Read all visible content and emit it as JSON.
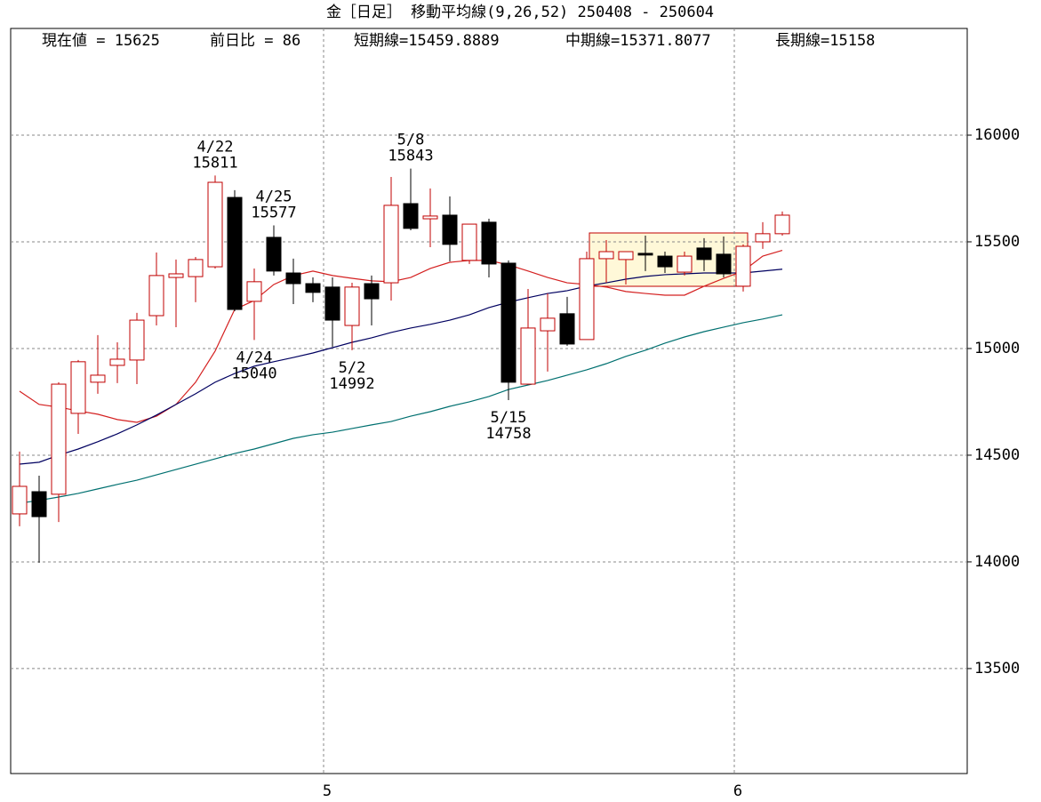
{
  "chart_data": {
    "type": "candlestick",
    "title": "金［日足］ 移動平均線(9,26,52)  250408 - 250604",
    "info": [
      "現在値 = 15625",
      "前日比 = 86",
      "短期線=15459.8889",
      "中期線=15371.8077",
      "長期線=15158"
    ],
    "categories": [
      null,
      null,
      null,
      null,
      null,
      null,
      null,
      null,
      null,
      null,
      null,
      null,
      null,
      null,
      null,
      null,
      "5",
      null,
      null,
      null,
      null,
      null,
      null,
      null,
      null,
      null,
      null,
      null,
      null,
      null,
      null,
      null,
      null,
      null,
      null,
      null,
      null,
      "6",
      null,
      null
    ],
    "open": [
      14225,
      14329,
      14317,
      14696,
      14842,
      14921,
      14946,
      15154,
      15333,
      15337,
      15383,
      15708,
      15221,
      15521,
      15354,
      15304,
      15288,
      15108,
      15304,
      15308,
      15679,
      15608,
      15625,
      15413,
      15592,
      15400,
      14833,
      15083,
      15163,
      15042,
      15421,
      15417,
      15446,
      15433,
      15358,
      15471,
      15442,
      15292,
      15500,
      15538
    ],
    "high": [
      14517,
      14404,
      14842,
      14946,
      15063,
      15029,
      15167,
      15450,
      15417,
      15429,
      15811,
      15742,
      15375,
      15577,
      15421,
      15333,
      15333,
      15308,
      15342,
      15804,
      15843,
      15750,
      15713,
      15583,
      15608,
      15413,
      15279,
      15258,
      15242,
      15454,
      15508,
      15454,
      15529,
      15454,
      15454,
      15517,
      15525,
      15488,
      15592,
      15642
    ],
    "low": [
      14167,
      13996,
      14187,
      14600,
      14788,
      14838,
      14833,
      15108,
      15100,
      15217,
      15375,
      15175,
      15040,
      15342,
      15208,
      15217,
      15008,
      14992,
      15108,
      15225,
      15554,
      15475,
      15408,
      15396,
      15333,
      14758,
      14833,
      14892,
      15013,
      15042,
      15308,
      15300,
      15363,
      15354,
      15342,
      15363,
      15333,
      15267,
      15467,
      15529
    ],
    "close": [
      14354,
      14212,
      14833,
      14938,
      14875,
      14950,
      15133,
      15342,
      15350,
      15417,
      15779,
      15183,
      15313,
      15363,
      15304,
      15263,
      15133,
      15288,
      15233,
      15671,
      15563,
      15621,
      15488,
      15583,
      15396,
      14842,
      15096,
      15142,
      15021,
      15421,
      15454,
      15454,
      15438,
      15383,
      15433,
      15417,
      15350,
      15479,
      15538,
      15625
    ],
    "up_color": "#c00000",
    "down_color": "#000000",
    "series": [
      {
        "color": "#d42020",
        "values": [
          14800,
          14738,
          14725,
          14708,
          14692,
          14667,
          14654,
          14683,
          14738,
          14842,
          14988,
          15183,
          15225,
          15300,
          15342,
          15363,
          15342,
          15329,
          15317,
          15313,
          15333,
          15375,
          15404,
          15413,
          15413,
          15392,
          15363,
          15333,
          15308,
          15300,
          15288,
          15267,
          15258,
          15250,
          15250,
          15292,
          15329,
          15363,
          15433,
          15459.8889
        ]
      },
      {
        "color": "#000060",
        "values": [
          14458,
          14467,
          14500,
          14529,
          14563,
          14600,
          14642,
          14688,
          14738,
          14788,
          14842,
          14883,
          14917,
          14938,
          14958,
          14979,
          15004,
          15029,
          15050,
          15075,
          15096,
          15113,
          15133,
          15158,
          15192,
          15217,
          15238,
          15258,
          15271,
          15292,
          15308,
          15325,
          15338,
          15346,
          15350,
          15354,
          15354,
          15354,
          15363,
          15371.8077
        ]
      },
      {
        "color": "#007070",
        "values": [
          14275,
          14288,
          14304,
          14321,
          14342,
          14363,
          14383,
          14408,
          14433,
          14458,
          14483,
          14508,
          14529,
          14554,
          14579,
          14596,
          14608,
          14625,
          14642,
          14658,
          14683,
          14704,
          14729,
          14750,
          14775,
          14808,
          14829,
          14850,
          14875,
          14900,
          14929,
          14963,
          14992,
          15025,
          15054,
          15079,
          15100,
          15121,
          15138,
          15158
        ]
      }
    ],
    "annotations": [
      {
        "label": "4/22",
        "value": 15811
      },
      {
        "label": "4/25",
        "value": 15577
      },
      {
        "label": "4/24",
        "value": 15040
      },
      {
        "label": "5/2",
        "value": 14992
      },
      {
        "label": "5/8",
        "value": 15843
      },
      {
        "label": "5/15",
        "value": 14758
      }
    ],
    "ylim": [
      13008,
      16500
    ],
    "yticks": [
      13500,
      14000,
      14500,
      15000,
      15500,
      16000
    ],
    "grid": true
  }
}
